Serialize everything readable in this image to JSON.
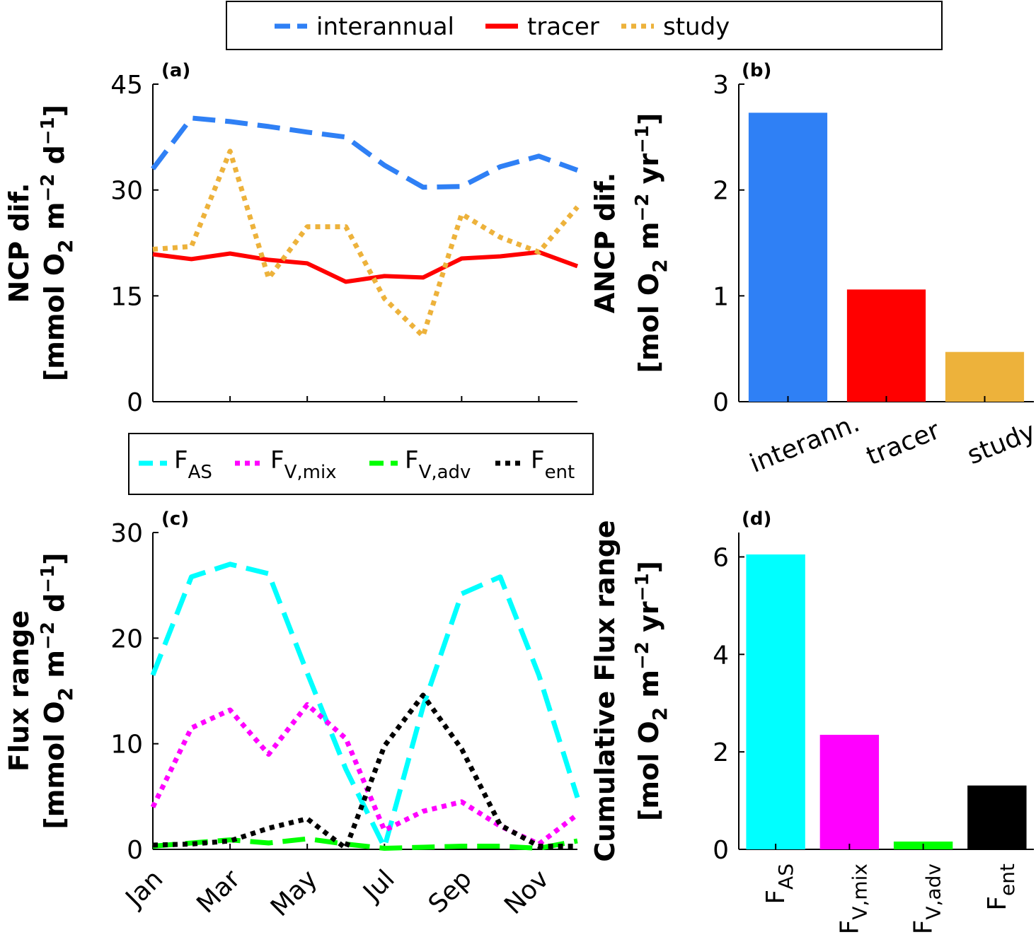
{
  "legend_top": {
    "items": [
      {
        "label": "interannual",
        "color": "#2f80f5",
        "style": "dash"
      },
      {
        "label": "tracer",
        "color": "#ff0000",
        "style": "solid"
      },
      {
        "label": "study",
        "color": "#edb23b",
        "style": "dot"
      }
    ]
  },
  "legend_bottom": {
    "items": [
      {
        "main": "F",
        "sub": "AS",
        "color": "#00ffff",
        "style": "dash"
      },
      {
        "main": "F",
        "sub": "V,mix",
        "color": "#ff00ff",
        "style": "dot"
      },
      {
        "main": "F",
        "sub": "V,adv",
        "color": "#00ff00",
        "style": "dash"
      },
      {
        "main": "F",
        "sub": "ent",
        "color": "#000000",
        "style": "dot"
      }
    ]
  },
  "chart_data": [
    {
      "panel": "(a)",
      "type": "line",
      "ylabel_line1": "NCP dif.",
      "ylabel_line2": {
        "a": "[mmol O",
        "sub": "2",
        "b": " m",
        "sup1": "−2",
        "c": " d",
        "sup2": "−1",
        "d": "]"
      },
      "ylim": [
        0,
        45
      ],
      "yticks": [
        0,
        15,
        30,
        45
      ],
      "x": [
        1,
        2,
        3,
        4,
        5,
        6,
        7,
        8,
        9,
        10,
        11,
        12
      ],
      "xlim": [
        1,
        12
      ],
      "series": [
        {
          "name": "interannual",
          "color": "#2f80f5",
          "style": "dash",
          "values": [
            33.0,
            40.2,
            39.7,
            39.0,
            38.2,
            37.5,
            33.5,
            30.4,
            30.5,
            33.3,
            34.8,
            32.8
          ]
        },
        {
          "name": "tracer",
          "color": "#ff0000",
          "style": "solid",
          "values": [
            20.9,
            20.2,
            21.0,
            20.1,
            19.6,
            17.0,
            17.8,
            17.6,
            20.3,
            20.6,
            21.2,
            19.2
          ]
        },
        {
          "name": "study",
          "color": "#edb23b",
          "style": "dot",
          "values": [
            21.6,
            22.0,
            35.5,
            17.5,
            24.8,
            24.8,
            14.6,
            9.3,
            26.6,
            23.3,
            21.2,
            27.6
          ]
        }
      ]
    },
    {
      "panel": "(b)",
      "type": "bar",
      "ylabel_line1": "ANCP dif.",
      "ylabel_line2": {
        "a": "[mol O",
        "sub": "2",
        "b": " m",
        "sup1": "−2",
        "c": " yr",
        "sup2": "−1",
        "d": "]"
      },
      "ylim": [
        0,
        3
      ],
      "yticks": [
        0,
        1,
        2,
        3
      ],
      "categories": [
        "interann.",
        "tracer",
        "study"
      ],
      "values": [
        2.73,
        1.06,
        0.47
      ],
      "colors": [
        "#2f80f5",
        "#ff0000",
        "#edb23b"
      ]
    },
    {
      "panel": "(c)",
      "type": "line",
      "ylabel_line1": "Flux range",
      "ylabel_line2": {
        "a": "[mmol O",
        "sub": "2",
        "b": " m",
        "sup1": "−2",
        "c": " d",
        "sup2": "−1",
        "d": "]"
      },
      "ylim": [
        0,
        30
      ],
      "yticks": [
        0,
        10,
        20,
        30
      ],
      "x": [
        1,
        2,
        3,
        4,
        5,
        6,
        7,
        8,
        9,
        10,
        11,
        12
      ],
      "xlim": [
        1,
        12
      ],
      "xticklabels": [
        "Jan",
        "Mar",
        "May",
        "Jul",
        "Sep",
        "Nov"
      ],
      "xtickpos": [
        1,
        3,
        5,
        7,
        9,
        11
      ],
      "series": [
        {
          "name": "F_AS",
          "color": "#00ffff",
          "style": "dash",
          "values": [
            16.5,
            25.8,
            27.0,
            26.1,
            16.7,
            7.6,
            0.2,
            13.5,
            24.2,
            25.8,
            16.5,
            4.9
          ]
        },
        {
          "name": "F_V,mix",
          "color": "#ff00ff",
          "style": "dot",
          "values": [
            4.0,
            11.5,
            13.2,
            9.0,
            13.7,
            10.5,
            1.8,
            3.6,
            4.5,
            2.2,
            0.5,
            3.3
          ]
        },
        {
          "name": "F_V,adv",
          "color": "#00ff00",
          "style": "dash",
          "values": [
            0.3,
            0.6,
            0.9,
            0.6,
            1.0,
            0.5,
            0.1,
            0.2,
            0.3,
            0.3,
            0.1,
            0.8
          ]
        },
        {
          "name": "F_ent",
          "color": "#000000",
          "style": "dot",
          "values": [
            0.4,
            0.5,
            0.8,
            2.0,
            2.9,
            0.1,
            9.8,
            14.6,
            9.5,
            2.3,
            0.3,
            0.3
          ]
        }
      ]
    },
    {
      "panel": "(d)",
      "type": "bar",
      "ylabel_line1": "Cumulative Flux range",
      "ylabel_line2": {
        "a": "[mol O",
        "sub": "2",
        "b": " m",
        "sup1": "−2",
        "c": " yr",
        "sup2": "−1",
        "d": "]"
      },
      "ylim": [
        0,
        6.5
      ],
      "yticks": [
        0,
        2,
        4,
        6
      ],
      "categories": [
        {
          "main": "F",
          "sub": "AS"
        },
        {
          "main": "F",
          "sub": "V,mix"
        },
        {
          "main": "F",
          "sub": "V,adv"
        },
        {
          "main": "F",
          "sub": "ent"
        }
      ],
      "values": [
        6.05,
        2.35,
        0.16,
        1.31
      ],
      "colors": [
        "#00ffff",
        "#ff00ff",
        "#00ff00",
        "#000000"
      ]
    }
  ]
}
